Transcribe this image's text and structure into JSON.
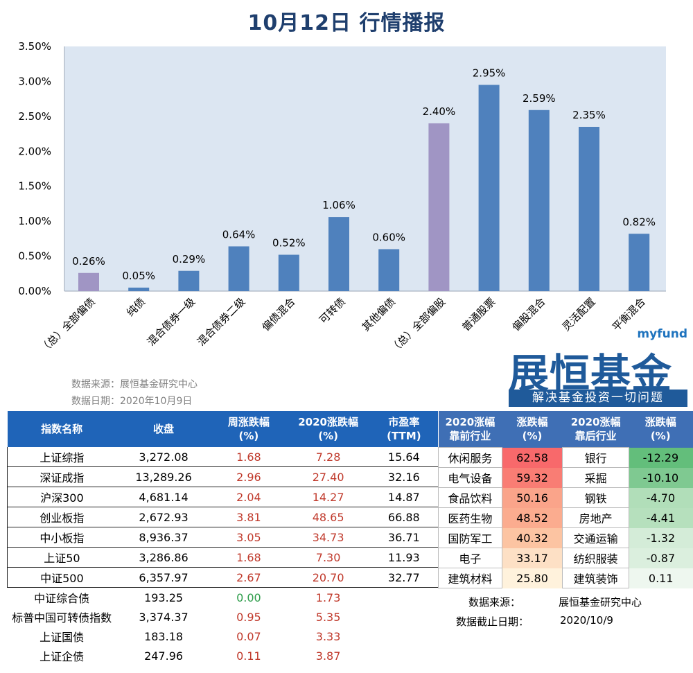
{
  "title": "10月12日 行情播报",
  "chart_data": {
    "type": "bar",
    "categories": [
      "（总）全部偏债",
      "纯债",
      "混合债券一级",
      "混合债券二级",
      "偏债混合",
      "可转债",
      "其他偏债",
      "（总）全部偏股",
      "普通股票",
      "偏股混合",
      "灵活配置",
      "平衡混合"
    ],
    "values": [
      0.26,
      0.05,
      0.29,
      0.64,
      0.52,
      1.06,
      0.6,
      2.4,
      2.95,
      2.59,
      2.35,
      0.82
    ],
    "value_labels": [
      "0.26%",
      "0.05%",
      "0.29%",
      "0.64%",
      "0.52%",
      "1.06%",
      "0.60%",
      "2.40%",
      "2.95%",
      "2.59%",
      "2.35%",
      "0.82%"
    ],
    "highlight": [
      0,
      7
    ],
    "ylim": [
      0,
      3.5
    ],
    "yticks": [
      "0.00%",
      "0.50%",
      "1.00%",
      "1.50%",
      "2.00%",
      "2.50%",
      "3.00%",
      "3.50%"
    ],
    "unit": "%",
    "grid": false,
    "colors": {
      "bar": "#4f81bd",
      "highlight": "#a095c4",
      "plot_bg": "#dce6f2"
    }
  },
  "source_note": {
    "source": "数据来源：展恒基金研究中心",
    "date": "数据日期：2020年10月9日"
  },
  "logo": {
    "en": "myfund",
    "cn": "展恒基金",
    "slogan": "解决基金投资一切问题"
  },
  "index_table": {
    "headers": [
      "指数名称",
      "收盘",
      "周涨跌幅\n(%)",
      "2020涨跌幅\n(%)",
      "市盈率\n(TTM)"
    ],
    "rows": [
      [
        "上证综指",
        "3,272.08",
        "1.68",
        "7.28",
        "15.64"
      ],
      [
        "深证成指",
        "13,289.26",
        "2.96",
        "27.40",
        "32.16"
      ],
      [
        "沪深300",
        "4,681.14",
        "2.04",
        "14.27",
        "14.87"
      ],
      [
        "创业板指",
        "2,672.93",
        "3.81",
        "48.65",
        "66.88"
      ],
      [
        "中小板指",
        "8,936.37",
        "3.05",
        "34.73",
        "36.71"
      ],
      [
        "上证50",
        "3,286.86",
        "1.68",
        "7.30",
        "11.93"
      ],
      [
        "中证500",
        "6,357.97",
        "2.67",
        "20.70",
        "32.77"
      ],
      [
        "中证综合债",
        "193.25",
        "0.00",
        "1.73",
        ""
      ],
      [
        "标普中国可转债指数",
        "3,374.37",
        "0.95",
        "5.35",
        ""
      ],
      [
        "上证国债",
        "183.18",
        "0.07",
        "3.33",
        ""
      ],
      [
        "上证企债",
        "247.96",
        "0.11",
        "3.87",
        ""
      ]
    ]
  },
  "sector_table": {
    "headers": [
      "2020涨幅\n靠前行业",
      "涨跌幅\n(%)",
      "2020涨幅\n靠后行业",
      "涨跌幅\n(%)"
    ],
    "rows": [
      [
        "休闲服务",
        "62.58",
        "银行",
        "-12.29"
      ],
      [
        "电气设备",
        "59.32",
        "采掘",
        "-10.10"
      ],
      [
        "食品饮料",
        "50.16",
        "钢铁",
        "-4.70"
      ],
      [
        "医药生物",
        "48.52",
        "房地产",
        "-4.41"
      ],
      [
        "国防军工",
        "40.32",
        "交通运输",
        "-1.32"
      ],
      [
        "电子",
        "33.17",
        "纺织服装",
        "-0.87"
      ],
      [
        "建筑材料",
        "25.80",
        "建筑装饰",
        "0.11"
      ]
    ],
    "heat_colors": [
      "#f8696b",
      "#f97d74",
      "#faa48a",
      "#fbac8f",
      "#fcc4a2",
      "#fde0c5",
      "#fff2dc"
    ],
    "cold_colors": [
      "#63be7b",
      "#7fc991",
      "#b1deb9",
      "#b6e0bd",
      "#d4ecd8",
      "#dbefde",
      "#eef7ef"
    ]
  },
  "footer": {
    "source_label": "数据来源：",
    "source_value": "展恒基金研究中心",
    "date_label": "数据截止日期：",
    "date_value": "2020/10/9"
  }
}
